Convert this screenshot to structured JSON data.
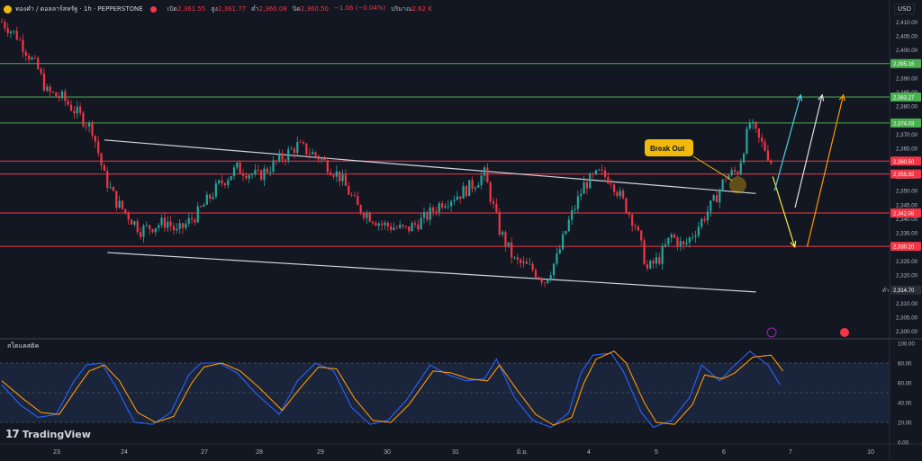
{
  "header": {
    "symbol": "ทองคำ / ดอลลาร์สหรัฐ · 1h · PEPPERSTONE",
    "open_label": "เปิด",
    "open": "2,361.55",
    "high_label": "สูง",
    "high": "2,361.77",
    "low_label": "ต่ำ",
    "low": "2,360.08",
    "close_label": "ปิด",
    "close": "2,360.50",
    "change": "−1.06 (−0.04%)",
    "volume_label": "ปริมาณ",
    "volume": "2.62 K",
    "currency": "USD"
  },
  "stoch_title": "สโตแคสติค",
  "logo_text": "TradingView",
  "annotation": "Break Out",
  "colors": {
    "background": "#131722",
    "bull": "#26a69a",
    "bear": "#f23645",
    "resistance": "#f23645",
    "green_level": "#4caf50",
    "channel": "#d1d4dc",
    "stoch_k": "#2962ff",
    "stoch_d": "#ff9800",
    "arrow_cyan": "#4dd0e1",
    "arrow_white": "#e0e0e0",
    "arrow_orange": "#ff9800",
    "arrow_yellow": "#ffeb3b"
  },
  "chart_data": [
    {
      "type": "candlestick",
      "title": "ทองคำ / ดอลลาร์สหรัฐ · 1h · PEPPERSTONE",
      "ylim": [
        2298,
        2412
      ],
      "y_ticks": [
        2300,
        2305,
        2310,
        2315,
        2320,
        2325,
        2330,
        2335,
        2340,
        2345,
        2350,
        2355,
        2360,
        2365,
        2370,
        2375,
        2380,
        2385,
        2390,
        2395,
        2400,
        2405,
        2410
      ],
      "x_tick_labels": [
        "23",
        "24",
        "27",
        "28",
        "29",
        "30",
        "31",
        "มิ.ย.",
        "4",
        "5",
        "6",
        "7",
        "10"
      ],
      "bar_count": 225,
      "last_price": 2360.5,
      "low_marker": {
        "label": "ต่ำ",
        "value": 2314.7
      },
      "price_path": [
        [
          0,
          2410
        ],
        [
          5,
          2405
        ],
        [
          12,
          2393
        ],
        [
          15,
          2385
        ],
        [
          20,
          2383
        ],
        [
          30,
          2372
        ],
        [
          34,
          2355
        ],
        [
          38,
          2346
        ],
        [
          46,
          2336
        ],
        [
          55,
          2339
        ],
        [
          58,
          2335
        ],
        [
          65,
          2342
        ],
        [
          72,
          2352
        ],
        [
          78,
          2358
        ],
        [
          85,
          2355
        ],
        [
          92,
          2361
        ],
        [
          98,
          2366
        ],
        [
          105,
          2362
        ],
        [
          112,
          2355
        ],
        [
          118,
          2344
        ],
        [
          126,
          2338
        ],
        [
          134,
          2336
        ],
        [
          140,
          2340
        ],
        [
          146,
          2346
        ],
        [
          152,
          2349
        ],
        [
          156,
          2352
        ],
        [
          160,
          2356
        ],
        [
          165,
          2336
        ],
        [
          170,
          2325
        ],
        [
          176,
          2322
        ],
        [
          180,
          2318
        ],
        [
          184,
          2326
        ],
        [
          188,
          2339
        ],
        [
          193,
          2352
        ],
        [
          198,
          2356
        ],
        [
          202,
          2354
        ],
        [
          206,
          2346
        ],
        [
          210,
          2338
        ],
        [
          214,
          2322
        ],
        [
          218,
          2326
        ],
        [
          222,
          2334
        ],
        [
          226,
          2330
        ],
        [
          230,
          2336
        ],
        [
          236,
          2346
        ],
        [
          240,
          2355
        ],
        [
          244,
          2357
        ],
        [
          248,
          2374
        ],
        [
          251,
          2368
        ],
        [
          253,
          2365
        ],
        [
          255,
          2360.5
        ]
      ],
      "horizontal_levels": [
        {
          "value": 2395.16,
          "label": "2,395.16",
          "color": "#4caf50"
        },
        {
          "value": 2383.27,
          "label": "2,383.27",
          "color": "#4caf50"
        },
        {
          "value": 2374.03,
          "label": "2,374.03",
          "color": "#4caf50"
        },
        {
          "value": 2360.5,
          "label": "2,360.50",
          "color": "#f23645"
        },
        {
          "value": 2355.92,
          "label": "2,355.92",
          "color": "#f23645"
        },
        {
          "value": 2342.08,
          "label": "2,342.08",
          "color": "#f23645"
        },
        {
          "value": 2330.2,
          "label": "2,330.20",
          "color": "#f23645"
        },
        {
          "value": 2314.7,
          "label": "2,314.70",
          "color": "#2a2e39"
        }
      ],
      "trendlines": [
        {
          "name": "channel-upper",
          "from": [
            34,
            2368
          ],
          "to": [
            250,
            2349
          ]
        },
        {
          "name": "channel-lower",
          "from": [
            35,
            2328
          ],
          "to": [
            250,
            2314
          ]
        }
      ]
    },
    {
      "type": "line",
      "title": "สโตแคสติค",
      "ylim": [
        0,
        100
      ],
      "y_ticks": [
        0,
        20,
        40,
        60,
        80,
        100
      ],
      "bands": [
        20,
        50,
        80
      ],
      "series": [
        {
          "name": "K",
          "color": "#2962ff",
          "path": [
            [
              0,
              58
            ],
            [
              6,
              38
            ],
            [
              12,
              25
            ],
            [
              18,
              28
            ],
            [
              24,
              62
            ],
            [
              28,
              78
            ],
            [
              33,
              80
            ],
            [
              38,
              55
            ],
            [
              44,
              20
            ],
            [
              50,
              18
            ],
            [
              56,
              30
            ],
            [
              62,
              68
            ],
            [
              66,
              80
            ],
            [
              72,
              80
            ],
            [
              78,
              70
            ],
            [
              84,
              50
            ],
            [
              92,
              28
            ],
            [
              98,
              62
            ],
            [
              104,
              80
            ],
            [
              110,
              72
            ],
            [
              116,
              35
            ],
            [
              122,
              18
            ],
            [
              128,
              22
            ],
            [
              134,
              42
            ],
            [
              142,
              78
            ],
            [
              148,
              68
            ],
            [
              154,
              62
            ],
            [
              160,
              64
            ],
            [
              164,
              84
            ],
            [
              170,
              45
            ],
            [
              176,
              22
            ],
            [
              182,
              15
            ],
            [
              188,
              30
            ],
            [
              192,
              70
            ],
            [
              196,
              88
            ],
            [
              202,
              90
            ],
            [
              206,
              72
            ],
            [
              212,
              30
            ],
            [
              216,
              15
            ],
            [
              222,
              22
            ],
            [
              228,
              45
            ],
            [
              232,
              78
            ],
            [
              238,
              62
            ],
            [
              242,
              75
            ],
            [
              248,
              92
            ],
            [
              254,
              78
            ],
            [
              258,
              58
            ]
          ]
        },
        {
          "name": "D",
          "color": "#ff9800",
          "path": [
            [
              0,
              62
            ],
            [
              7,
              44
            ],
            [
              13,
              30
            ],
            [
              19,
              28
            ],
            [
              25,
              55
            ],
            [
              29,
              72
            ],
            [
              34,
              78
            ],
            [
              39,
              62
            ],
            [
              45,
              30
            ],
            [
              51,
              20
            ],
            [
              57,
              26
            ],
            [
              63,
              60
            ],
            [
              67,
              76
            ],
            [
              73,
              80
            ],
            [
              79,
              72
            ],
            [
              85,
              56
            ],
            [
              93,
              32
            ],
            [
              99,
              55
            ],
            [
              105,
              76
            ],
            [
              111,
              74
            ],
            [
              117,
              44
            ],
            [
              123,
              22
            ],
            [
              129,
              20
            ],
            [
              135,
              38
            ],
            [
              143,
              72
            ],
            [
              149,
              70
            ],
            [
              155,
              64
            ],
            [
              161,
              62
            ],
            [
              165,
              78
            ],
            [
              171,
              52
            ],
            [
              177,
              28
            ],
            [
              183,
              17
            ],
            [
              189,
              25
            ],
            [
              193,
              60
            ],
            [
              197,
              84
            ],
            [
              203,
              92
            ],
            [
              207,
              80
            ],
            [
              213,
              40
            ],
            [
              217,
              20
            ],
            [
              223,
              18
            ],
            [
              229,
              38
            ],
            [
              233,
              68
            ],
            [
              239,
              64
            ],
            [
              243,
              70
            ],
            [
              249,
              86
            ],
            [
              255,
              88
            ],
            [
              259,
              72
            ]
          ]
        }
      ]
    }
  ]
}
